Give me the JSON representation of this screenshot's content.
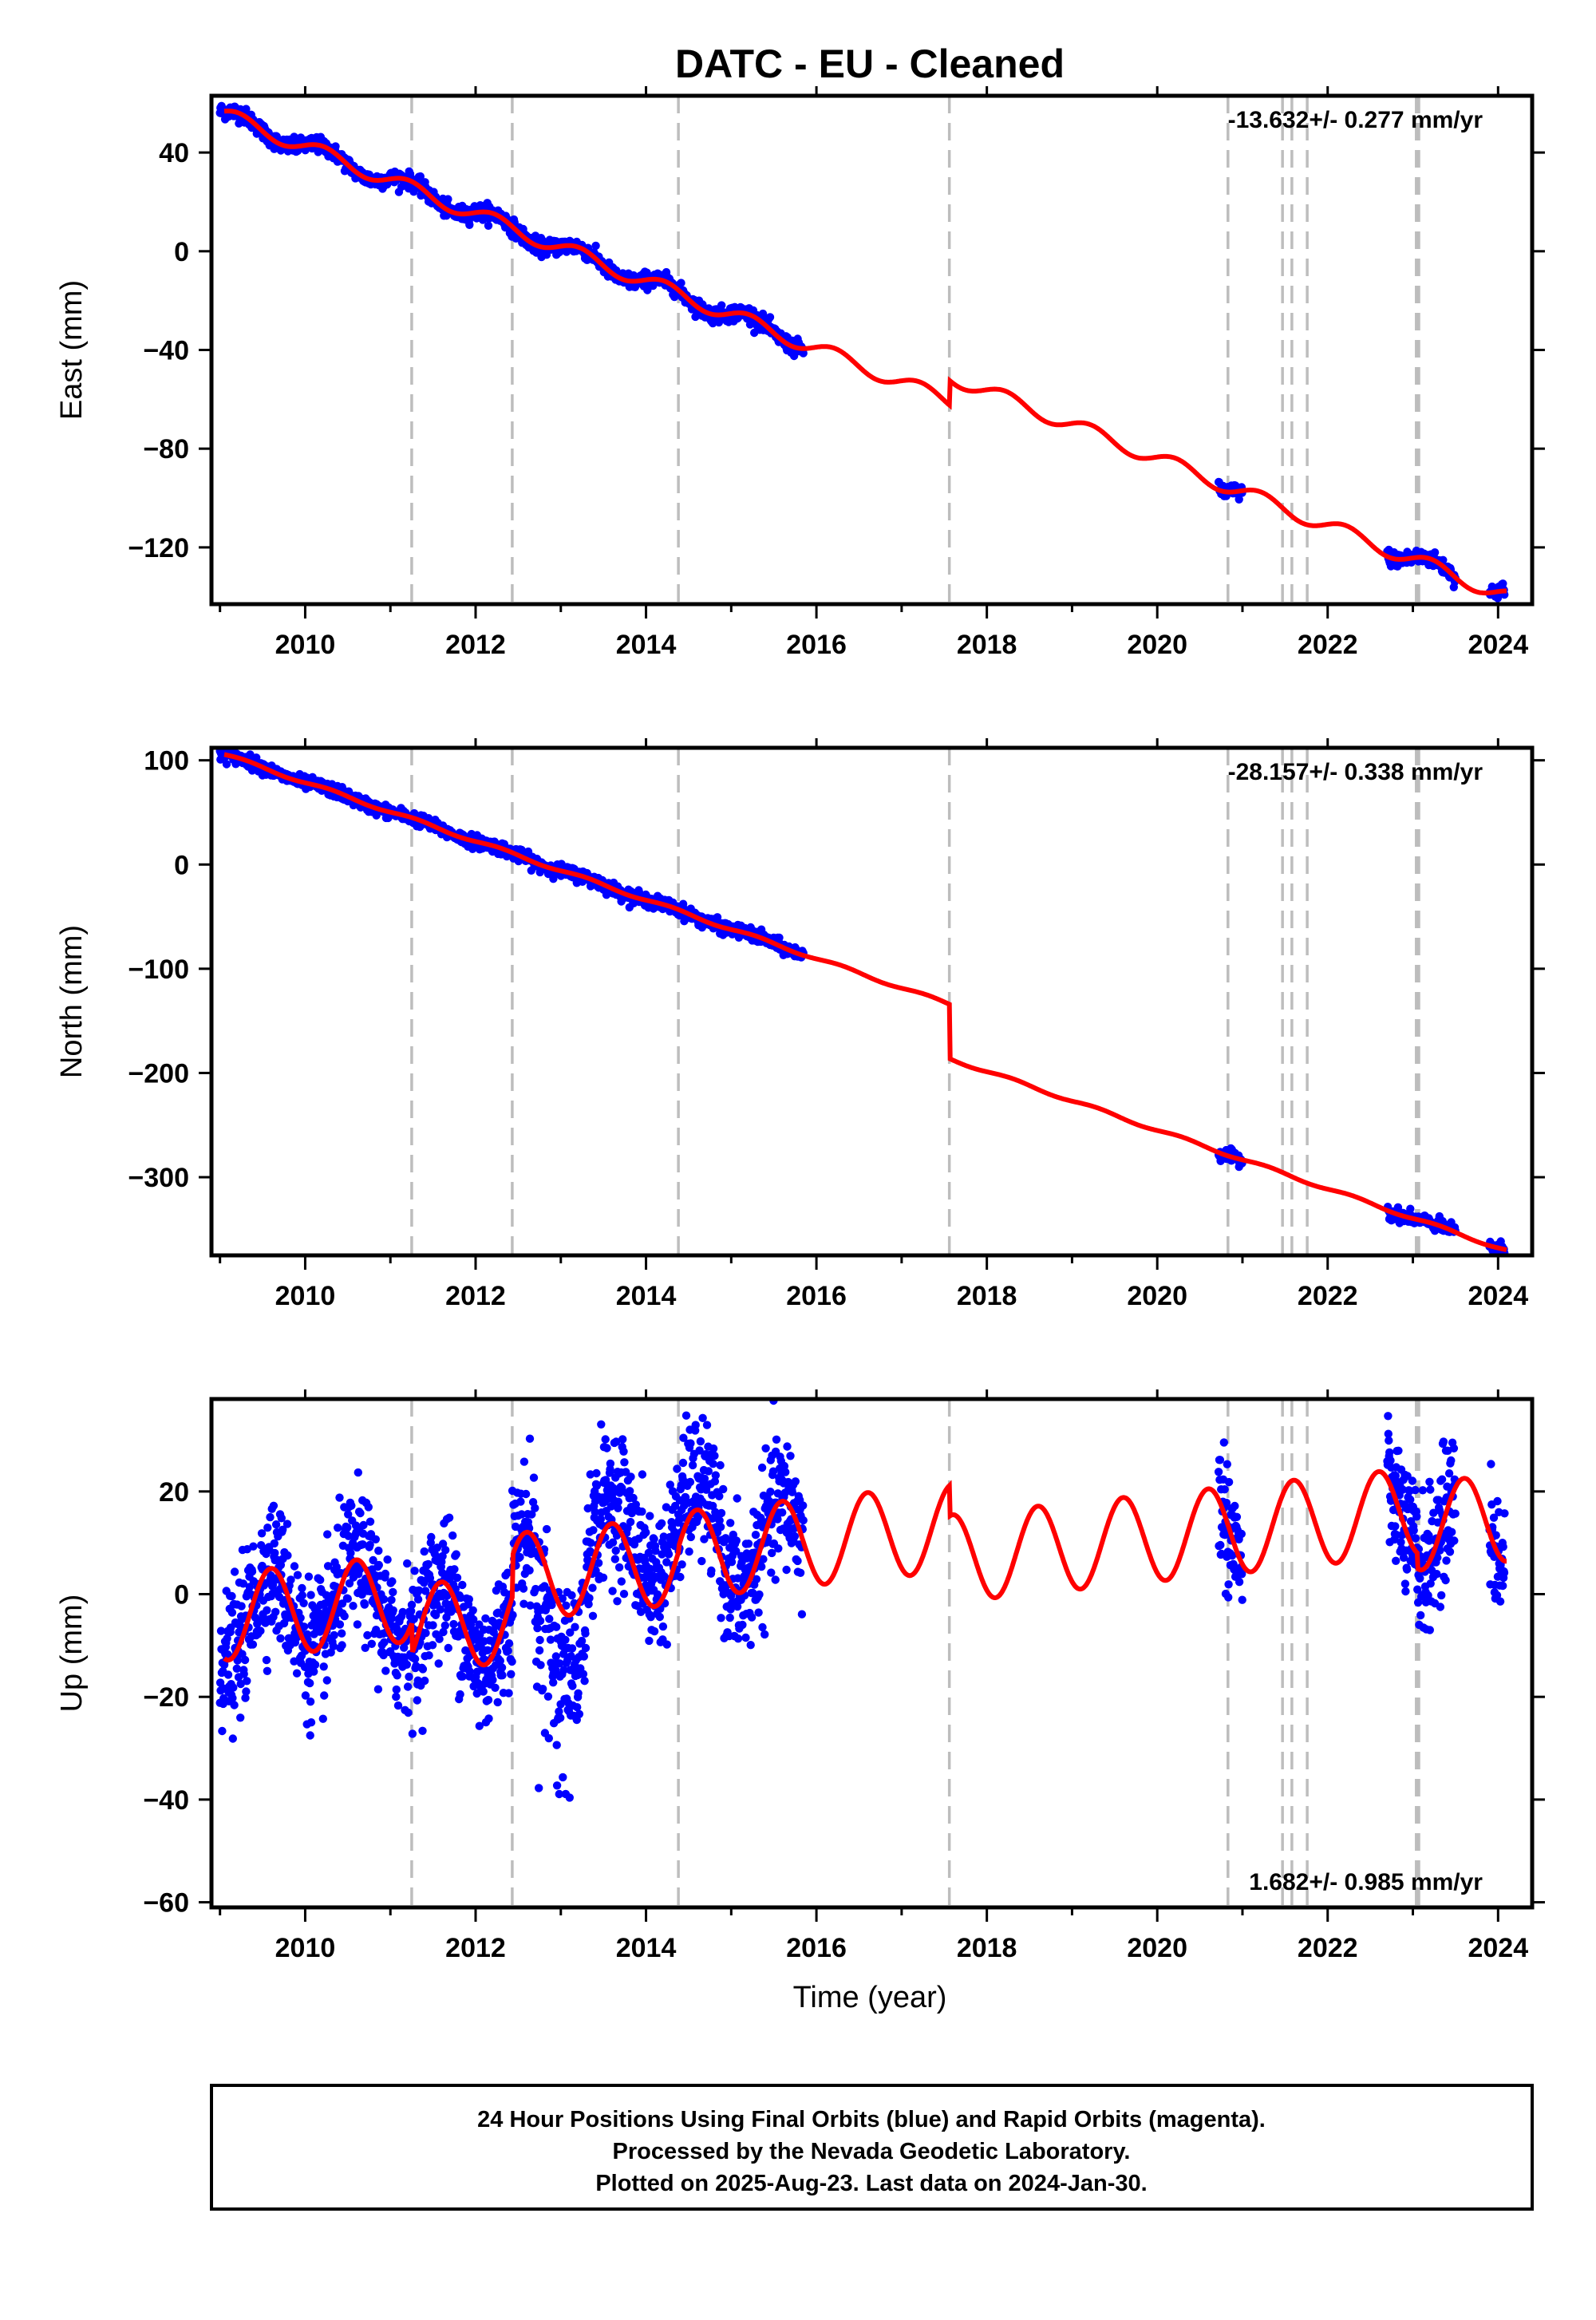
{
  "title": "DATC  - EU - Cleaned",
  "xlabel": "Time (year)",
  "colors": {
    "data": "#0000ff",
    "model": "#ff0000",
    "break": "#bdbdbd",
    "axis": "#000000"
  },
  "footer": {
    "line1": "24 Hour Positions Using Final Orbits (blue) and Rapid Orbits (magenta).",
    "line2": "Processed by the Nevada Geodetic Laboratory.",
    "line3": "Plotted on 2025-Aug-23. Last data on 2024-Jan-30."
  },
  "chart_data": [
    {
      "type": "scatter",
      "component": "east",
      "ylabel": "East (mm)",
      "rate_label": "-13.632+/- 0.277 mm/yr",
      "rate_position": "top-right",
      "xlim": [
        2008.9,
        2024.4
      ],
      "ylim": [
        -143,
        63
      ],
      "xticks": [
        2010,
        2012,
        2014,
        2016,
        2018,
        2020,
        2022,
        2024
      ],
      "yticks": [
        40,
        0,
        -40,
        -80,
        -120
      ],
      "ytick_labels": [
        "40",
        "0",
        "−40",
        "−80",
        "−120"
      ],
      "equipment_breaks": [
        2011.25,
        2012.43,
        2014.38,
        2017.56,
        2020.83,
        2021.47,
        2021.58,
        2021.76,
        2023.04,
        2023.07
      ],
      "model": {
        "rate_mm_yr": -13.632,
        "ref_epoch": 2009.0,
        "intercept": 56,
        "annual_amplitude": 3.0,
        "annual_phase_peak": 0.22,
        "offsets": [
          {
            "epoch": 2017.56,
            "step": 10
          }
        ]
      },
      "data_spans": [
        [
          2009.0,
          2015.85
        ],
        [
          2020.72,
          2021.0
        ],
        [
          2022.7,
          2023.5
        ],
        [
          2023.9,
          2024.08
        ]
      ],
      "data_noise_mm": 1.6
    },
    {
      "type": "scatter",
      "component": "north",
      "ylabel": "North (mm)",
      "rate_label": "-28.157+/- 0.338 mm/yr",
      "rate_position": "top-right",
      "xlim": [
        2008.9,
        2024.4
      ],
      "ylim": [
        -375,
        112
      ],
      "xticks": [
        2010,
        2012,
        2014,
        2016,
        2018,
        2020,
        2022,
        2024
      ],
      "yticks": [
        100,
        0,
        -100,
        -200,
        -300
      ],
      "ytick_labels": [
        "100",
        "0",
        "−100",
        "−200",
        "−300"
      ],
      "equipment_breaks": [
        2011.25,
        2012.43,
        2014.38,
        2017.56,
        2020.83,
        2021.47,
        2021.58,
        2021.76,
        2023.04,
        2023.07
      ],
      "model": {
        "rate_mm_yr": -28.157,
        "ref_epoch": 2009.0,
        "intercept": 107,
        "annual_amplitude": 1.5,
        "annual_phase_peak": 0.3,
        "offsets": [
          {
            "epoch": 2017.56,
            "step": -52
          }
        ]
      },
      "data_spans": [
        [
          2009.0,
          2015.85
        ],
        [
          2020.72,
          2021.0
        ],
        [
          2022.7,
          2023.5
        ],
        [
          2023.9,
          2024.08
        ]
      ],
      "data_noise_mm": 3.0
    },
    {
      "type": "scatter",
      "component": "up",
      "ylabel": "Up (mm)",
      "rate_label": "1.682+/- 0.985 mm/yr",
      "rate_position": "bottom-right",
      "xlim": [
        2008.9,
        2024.4
      ],
      "ylim": [
        -61,
        38
      ],
      "xticks": [
        2010,
        2012,
        2014,
        2016,
        2018,
        2020,
        2022,
        2024
      ],
      "yticks": [
        20,
        0,
        -20,
        -40,
        -60
      ],
      "ytick_labels": [
        "20",
        "0",
        "−20",
        "−40",
        "−60"
      ],
      "equipment_breaks": [
        2011.25,
        2012.43,
        2014.38,
        2017.56,
        2020.83,
        2021.47,
        2021.58,
        2021.76,
        2023.04,
        2023.07
      ],
      "model": {
        "rate_mm_yr": 1.682,
        "ref_epoch": 2009.0,
        "intercept": -4.5,
        "annual_amplitude": 8.5,
        "annual_phase_peak": 0.6,
        "offsets": [
          {
            "epoch": 2011.25,
            "step": -6
          },
          {
            "epoch": 2012.43,
            "step": 8
          },
          {
            "epoch": 2014.38,
            "step": 1
          },
          {
            "epoch": 2017.56,
            "step": -6
          },
          {
            "epoch": 2023.05,
            "step": -3
          }
        ]
      },
      "data_spans": [
        [
          2009.0,
          2015.85
        ],
        [
          2020.72,
          2021.0
        ],
        [
          2022.7,
          2023.5
        ],
        [
          2023.9,
          2024.08
        ]
      ],
      "data_noise_mm": 6.5
    }
  ]
}
